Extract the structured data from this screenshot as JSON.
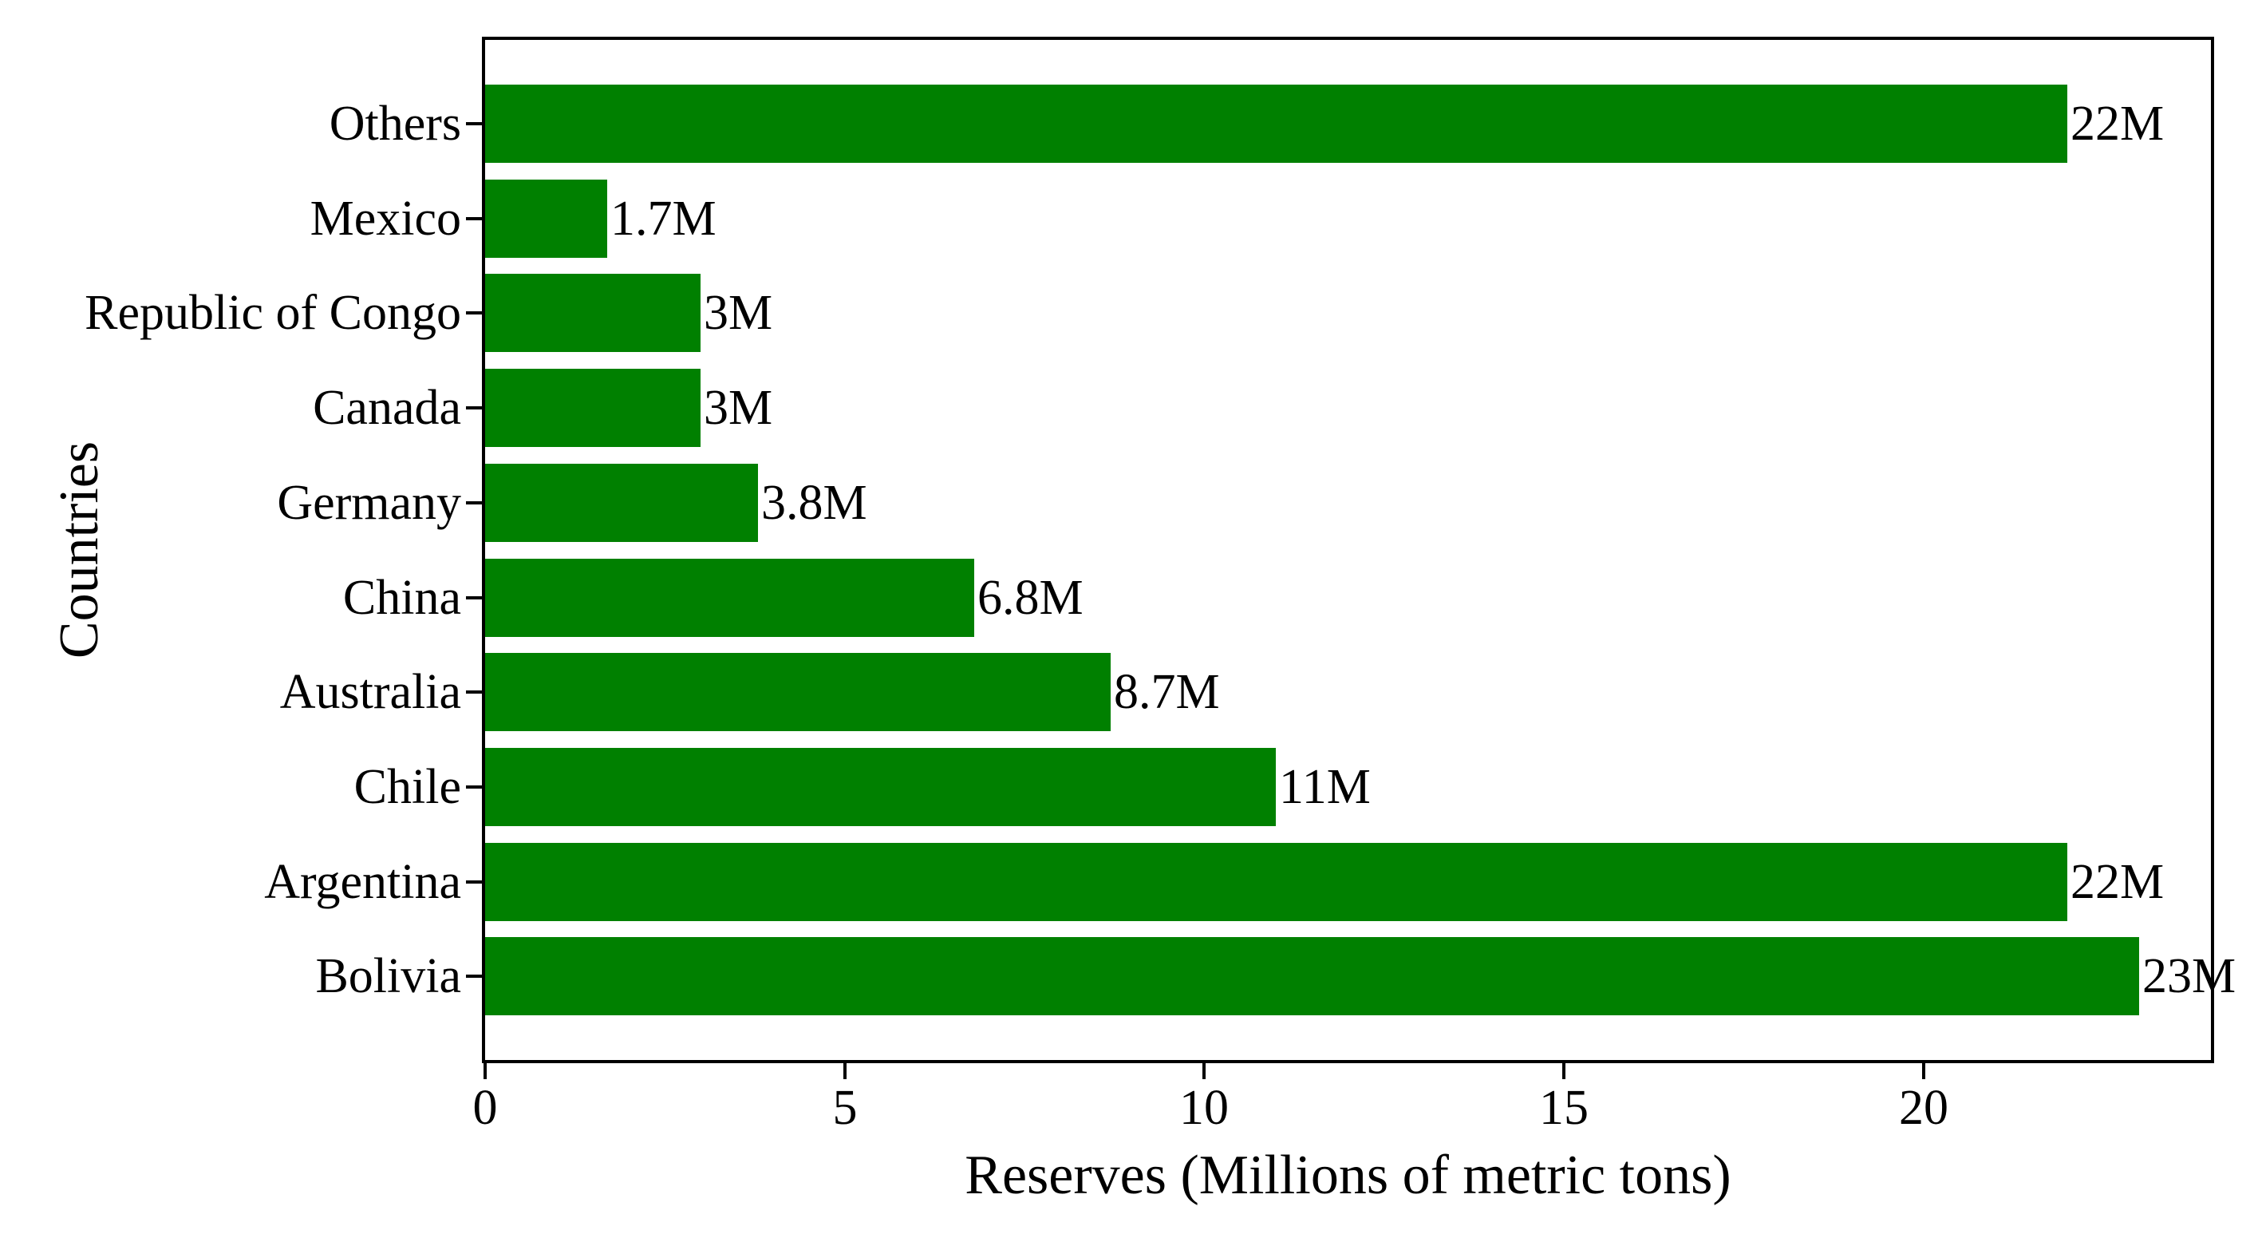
{
  "figure": {
    "background_color": "#ffffff",
    "text_color": "#000000",
    "axis_color": "#000000"
  },
  "chart_data": {
    "type": "bar",
    "orientation": "horizontal",
    "title": "",
    "xlabel": "Reserves (Millions of metric tons)",
    "ylabel": "Countries",
    "categories": [
      "Others",
      "Mexico",
      "Republic of Congo",
      "Canada",
      "Germany",
      "China",
      "Australia",
      "Chile",
      "Argentina",
      "Bolivia"
    ],
    "values": [
      22,
      1.7,
      3,
      3,
      3.8,
      6.8,
      8.7,
      11,
      22,
      23
    ],
    "bar_labels": [
      "22M",
      "1.7M",
      "3M",
      "3M",
      "3.8M",
      "6.8M",
      "8.7M",
      "11M",
      "22M",
      "23M"
    ],
    "bar_color": "#008000",
    "xlim": [
      0,
      24
    ],
    "x_ticks": [
      0,
      5,
      10,
      15,
      20
    ],
    "x_tick_labels": [
      "0",
      "5",
      "10",
      "15",
      "20"
    ],
    "grid": false,
    "legend": false
  }
}
